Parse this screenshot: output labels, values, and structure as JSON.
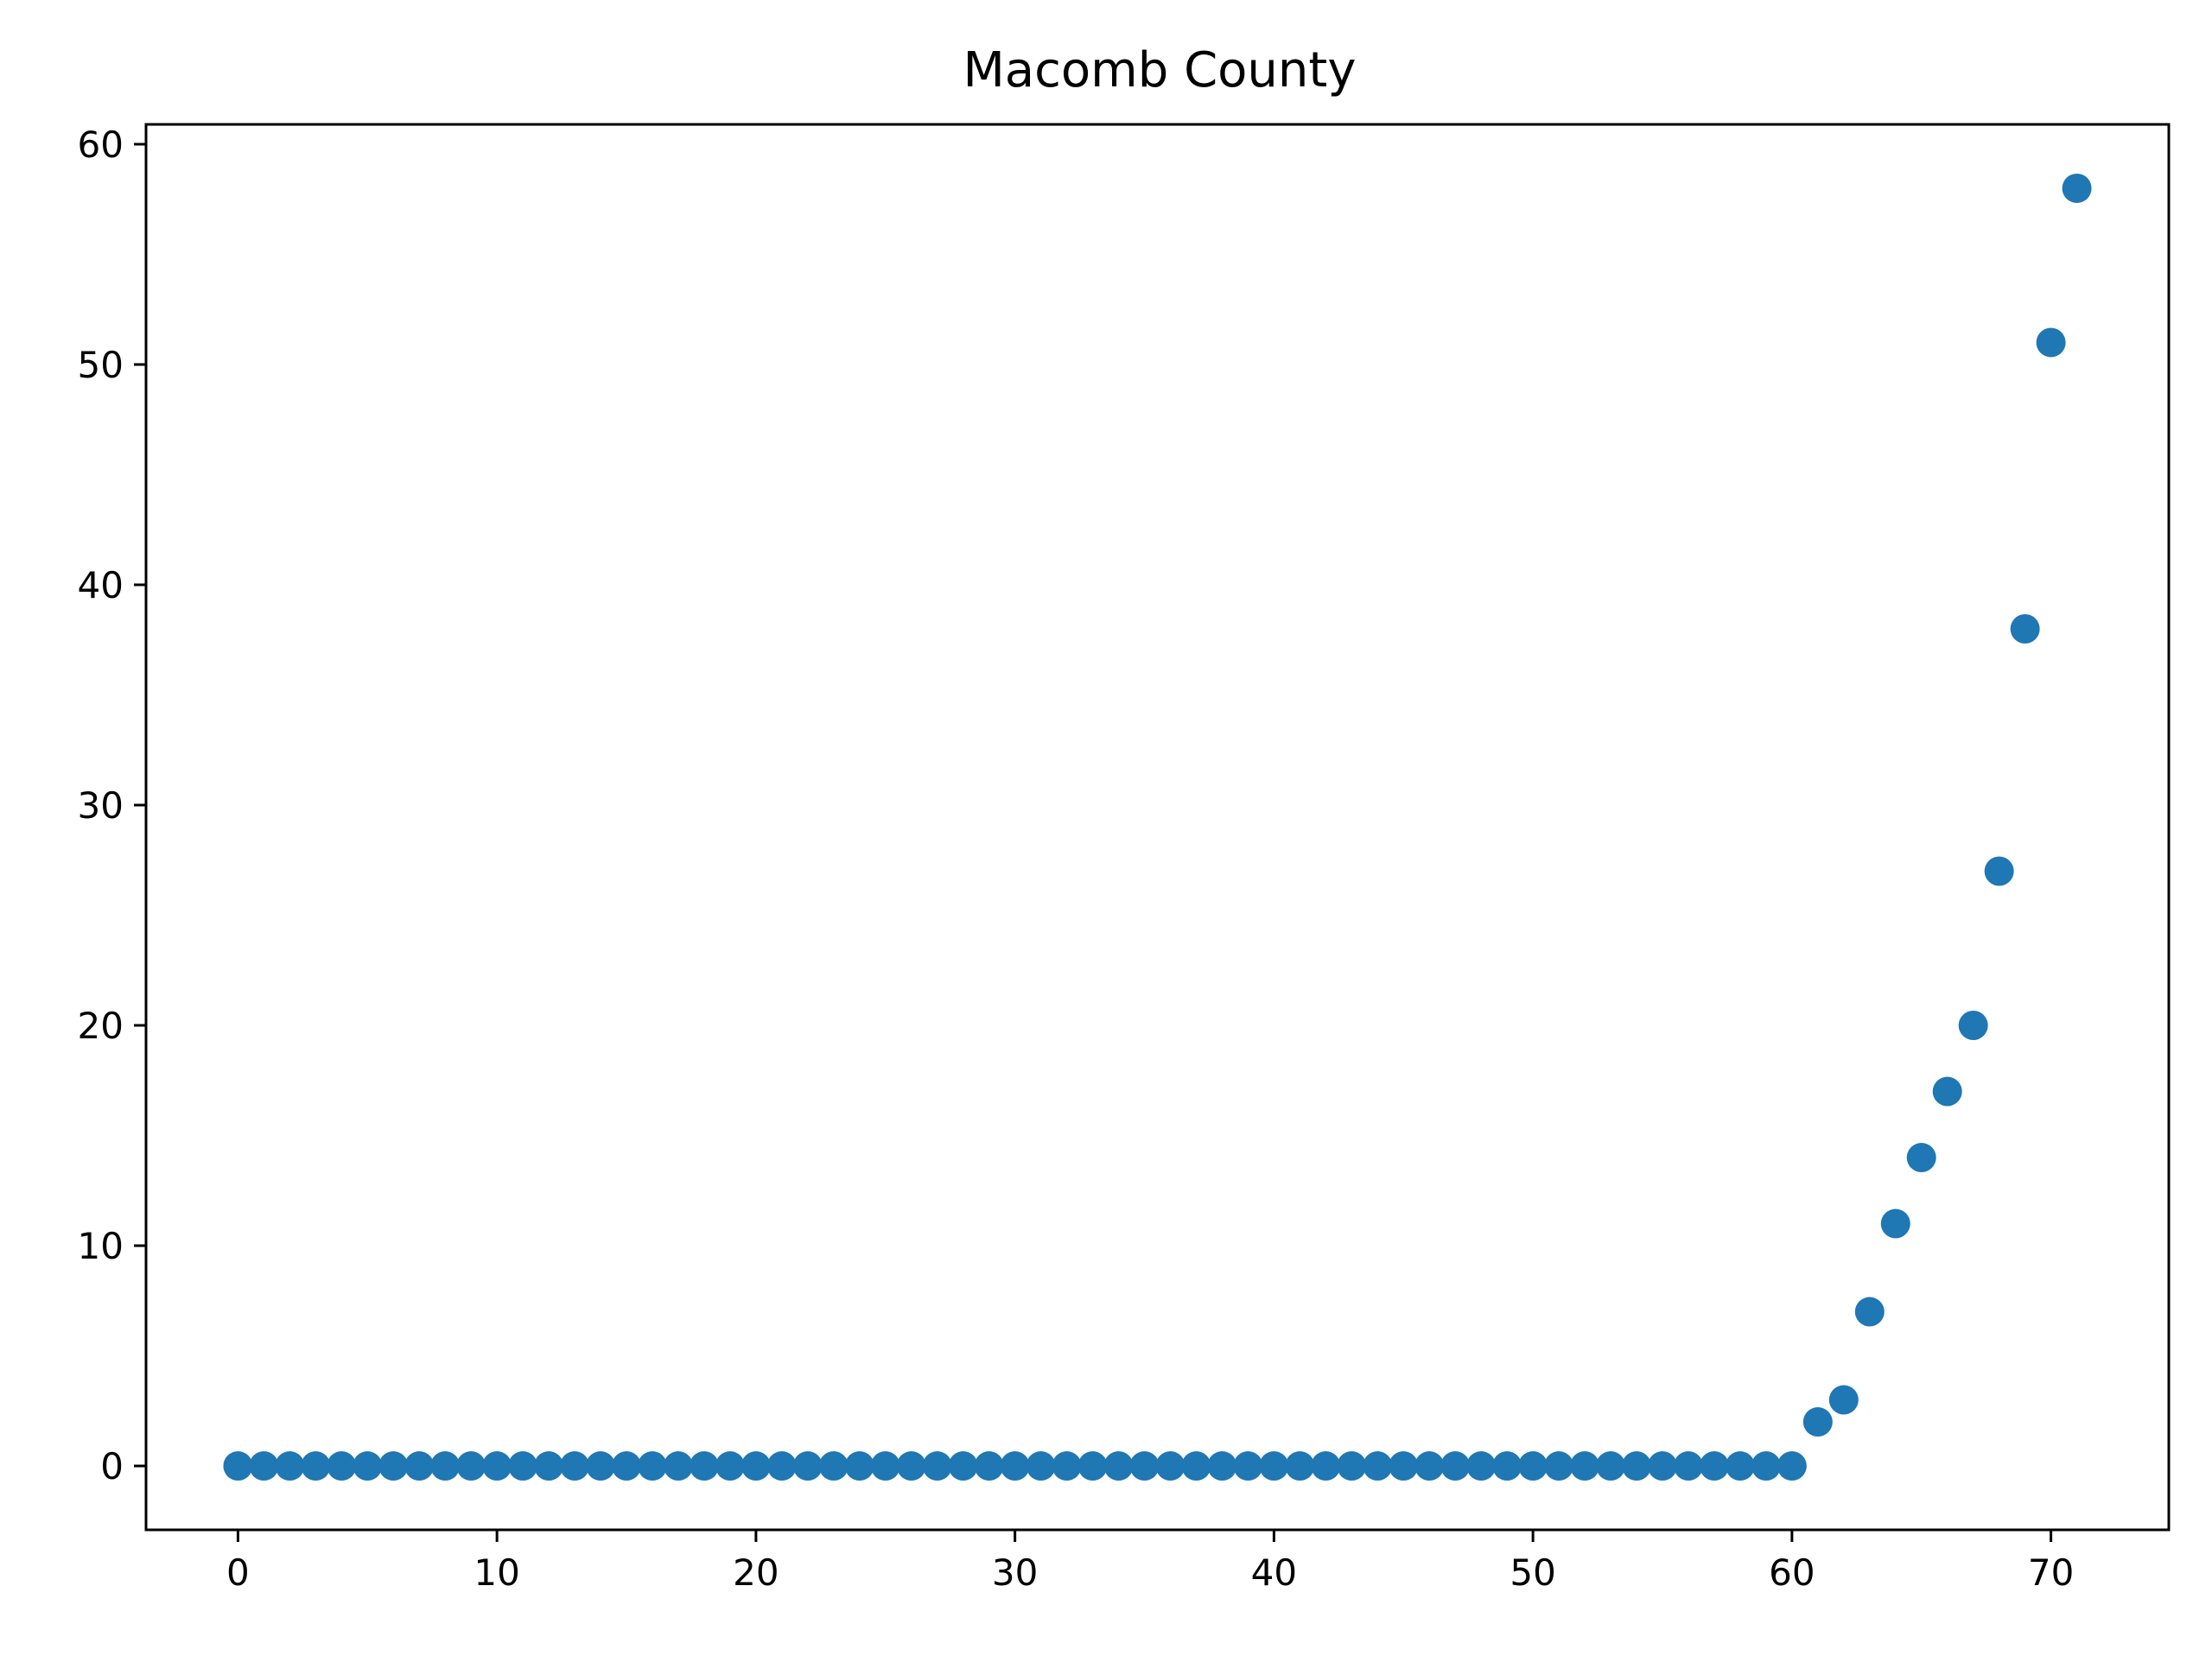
{
  "chart_data": {
    "type": "scatter",
    "title": "Macomb County",
    "xlabel": "",
    "ylabel": "",
    "xlim": [
      -3.55,
      74.55
    ],
    "ylim": [
      -2.9,
      60.9
    ],
    "xticks": [
      0,
      10,
      20,
      30,
      40,
      50,
      60,
      70
    ],
    "xtick_labels": [
      "0",
      "10",
      "20",
      "30",
      "40",
      "50",
      "60",
      "70"
    ],
    "yticks": [
      0,
      10,
      20,
      30,
      40,
      50,
      60
    ],
    "ytick_labels": [
      "0",
      "10",
      "20",
      "30",
      "40",
      "50",
      "60"
    ],
    "grid": false,
    "legend": "none",
    "series": [
      {
        "color": "#1f77b4",
        "x": [
          0,
          1,
          2,
          3,
          4,
          5,
          6,
          7,
          8,
          9,
          10,
          11,
          12,
          13,
          14,
          15,
          16,
          17,
          18,
          19,
          20,
          21,
          22,
          23,
          24,
          25,
          26,
          27,
          28,
          29,
          30,
          31,
          32,
          33,
          34,
          35,
          36,
          37,
          38,
          39,
          40,
          41,
          42,
          43,
          44,
          45,
          46,
          47,
          48,
          49,
          50,
          51,
          52,
          53,
          54,
          55,
          56,
          57,
          58,
          59,
          60,
          61,
          62,
          63,
          64,
          65,
          66,
          67,
          68,
          69,
          70,
          71
        ],
        "y": [
          0,
          0,
          0,
          0,
          0,
          0,
          0,
          0,
          0,
          0,
          0,
          0,
          0,
          0,
          0,
          0,
          0,
          0,
          0,
          0,
          0,
          0,
          0,
          0,
          0,
          0,
          0,
          0,
          0,
          0,
          0,
          0,
          0,
          0,
          0,
          0,
          0,
          0,
          0,
          0,
          0,
          0,
          0,
          0,
          0,
          0,
          0,
          0,
          0,
          0,
          0,
          0,
          0,
          0,
          0,
          0,
          0,
          0,
          0,
          0,
          0,
          2,
          3,
          7,
          11,
          14,
          17,
          20,
          27,
          38,
          51,
          58
        ]
      }
    ]
  }
}
